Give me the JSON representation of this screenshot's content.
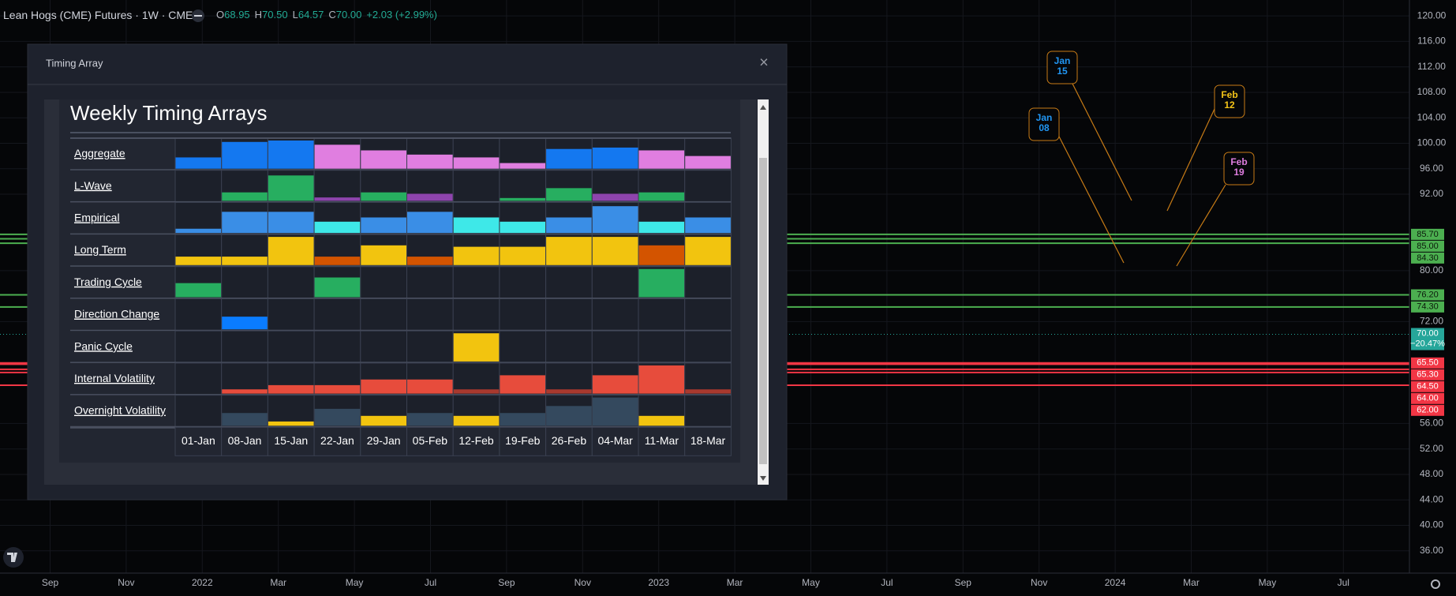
{
  "header": {
    "symbol": "Lean Hogs (CME) Futures · 1W · CME",
    "ohlc": [
      {
        "key": "O",
        "value": "68.95"
      },
      {
        "key": "H",
        "value": "70.50"
      },
      {
        "key": "L",
        "value": "64.57"
      },
      {
        "key": "C",
        "value": "70.00"
      }
    ],
    "change": "+2.03 (+2.99%)"
  },
  "price_axis": {
    "ylim": [
      32.5,
      122.5
    ],
    "ticks": [
      {
        "value": 120,
        "label": "120.00"
      },
      {
        "value": 116,
        "label": "116.00"
      },
      {
        "value": 112,
        "label": "112.00"
      },
      {
        "value": 108,
        "label": "108.00"
      },
      {
        "value": 104,
        "label": "104.00"
      },
      {
        "value": 100,
        "label": "100.00"
      },
      {
        "value": 96,
        "label": "96.00"
      },
      {
        "value": 92,
        "label": "92.00"
      },
      {
        "value": 80,
        "label": "80.00"
      },
      {
        "value": 72,
        "label": "72.00"
      },
      {
        "value": 56,
        "label": "56.00"
      },
      {
        "value": 52,
        "label": "52.00"
      },
      {
        "value": 48,
        "label": "48.00"
      },
      {
        "value": 44,
        "label": "44.00"
      },
      {
        "value": 40,
        "label": "40.00"
      },
      {
        "value": 36,
        "label": "36.00"
      }
    ]
  },
  "price_lines": [
    {
      "value": 85.7,
      "label": "85.70",
      "color": "#4caf50"
    },
    {
      "value": 85,
      "label": "85.00",
      "color": "#4caf50"
    },
    {
      "value": 84.3,
      "label": "84.30",
      "color": "#4caf50"
    },
    {
      "value": 76.2,
      "label": "76.20",
      "color": "#4caf50"
    },
    {
      "value": 74.3,
      "label": "74.30",
      "color": "#4caf50"
    },
    {
      "value": 65.5,
      "label": "65.50",
      "color": "#f23645"
    },
    {
      "value": 65.3,
      "label": "65.30",
      "color": "#f23645"
    },
    {
      "value": 64.5,
      "label": "64.50",
      "color": "#f23645"
    },
    {
      "value": 64,
      "label": "64.00",
      "color": "#f23645"
    },
    {
      "value": 62,
      "label": "62.00",
      "color": "#f23645"
    }
  ],
  "last_price": {
    "value": 70,
    "label": "70.00",
    "change": "−20.47%",
    "color": "#26a69a"
  },
  "time_axis": [
    "Sep",
    "Nov",
    "2022",
    "Mar",
    "May",
    "Jul",
    "Sep",
    "Nov",
    "2023",
    "Mar",
    "May",
    "Jul",
    "Sep",
    "Nov",
    "2024",
    "Mar",
    "May",
    "Jul"
  ],
  "annotations": [
    {
      "month": "Jan",
      "day": "15",
      "color": "#2196f3"
    },
    {
      "month": "Feb",
      "day": "12",
      "color": "#f5c518"
    },
    {
      "month": "Jan",
      "day": "08",
      "color": "#2196f3"
    },
    {
      "month": "Feb",
      "day": "19",
      "color": "#e07ee0"
    }
  ],
  "timing_array": {
    "window_title": "Timing Array",
    "close": "×",
    "title": "Weekly Timing Arrays",
    "ylim": [
      0,
      1
    ],
    "columns": [
      "01-Jan",
      "08-Jan",
      "15-Jan",
      "22-Jan",
      "29-Jan",
      "05-Feb",
      "12-Feb",
      "19-Feb",
      "26-Feb",
      "04-Mar",
      "11-Mar",
      "18-Mar"
    ],
    "rows": [
      {
        "name": "Aggregate",
        "values": [
          0.4,
          0.95,
          1,
          0.85,
          0.65,
          0.5,
          0.4,
          0.2,
          0.7,
          0.75,
          0.65,
          0.45
        ],
        "colors": [
          "#1478f0",
          "#1478f0",
          "#1478f0",
          "#e07ee0",
          "#e07ee0",
          "#e07ee0",
          "#e07ee0",
          "#e07ee0",
          "#1478f0",
          "#1478f0",
          "#e07ee0",
          "#e07ee0"
        ]
      },
      {
        "name": "L-Wave",
        "values": [
          0,
          0.3,
          0.9,
          0.12,
          0.3,
          0.25,
          0,
          0.1,
          0.45,
          0.25,
          0.3,
          0
        ],
        "colors": [
          "#27ae60",
          "#27ae60",
          "#27ae60",
          "#8e44ad",
          "#27ae60",
          "#8e44ad",
          "#27ae60",
          "#27ae60",
          "#27ae60",
          "#8e44ad",
          "#27ae60",
          "#27ae60"
        ]
      },
      {
        "name": "Empirical",
        "values": [
          0.15,
          0.75,
          0.75,
          0.4,
          0.55,
          0.75,
          0.55,
          0.4,
          0.55,
          0.95,
          0.4,
          0.55
        ],
        "colors": [
          "#3a8ee6",
          "#3a8ee6",
          "#3a8ee6",
          "#3ee8e8",
          "#3a8ee6",
          "#3a8ee6",
          "#3ee8e8",
          "#3ee8e8",
          "#3a8ee6",
          "#3a8ee6",
          "#3ee8e8",
          "#3a8ee6"
        ]
      },
      {
        "name": "Long Term",
        "values": [
          0.3,
          0.3,
          1,
          0.3,
          0.7,
          0.3,
          0.65,
          0.65,
          1,
          1,
          0.7,
          1
        ],
        "colors": [
          "#f2c40f",
          "#f2c40f",
          "#f2c40f",
          "#d35400",
          "#f2c40f",
          "#d35400",
          "#f2c40f",
          "#f2c40f",
          "#f2c40f",
          "#f2c40f",
          "#d35400",
          "#f2c40f"
        ]
      },
      {
        "name": "Trading Cycle",
        "values": [
          0.5,
          0,
          0,
          0.7,
          0,
          0,
          0,
          0,
          0,
          0,
          1,
          0
        ],
        "colors": [
          "#27ae60",
          "#27ae60",
          "#27ae60",
          "#27ae60",
          "#27ae60",
          "#27ae60",
          "#27ae60",
          "#27ae60",
          "#27ae60",
          "#27ae60",
          "#27ae60",
          "#27ae60"
        ]
      },
      {
        "name": "Direction Change",
        "values": [
          0,
          0.45,
          0,
          0,
          0,
          0,
          0,
          0,
          0,
          0,
          0,
          0
        ],
        "colors": [
          "#0a7cff",
          "#0a7cff",
          "#0a7cff",
          "#0a7cff",
          "#0a7cff",
          "#0a7cff",
          "#0a7cff",
          "#0a7cff",
          "#0a7cff",
          "#0a7cff",
          "#0a7cff",
          "#0a7cff"
        ]
      },
      {
        "name": "Panic Cycle",
        "values": [
          0,
          0,
          0,
          0,
          0,
          0,
          1,
          0,
          0,
          0,
          0,
          0
        ],
        "colors": [
          "#f2c40f",
          "#f2c40f",
          "#f2c40f",
          "#f2c40f",
          "#f2c40f",
          "#f2c40f",
          "#f2c40f",
          "#f2c40f",
          "#f2c40f",
          "#f2c40f",
          "#f2c40f",
          "#f2c40f"
        ]
      },
      {
        "name": "Internal Volatility",
        "values": [
          0,
          0.15,
          0.3,
          0.3,
          0.5,
          0.5,
          0.15,
          0.65,
          0.15,
          0.65,
          1,
          0.15
        ],
        "colors": [
          "#e74c3c",
          "#e74c3c",
          "#e74c3c",
          "#e74c3c",
          "#e74c3c",
          "#e74c3c",
          "#a8392e",
          "#e74c3c",
          "#a8392e",
          "#e74c3c",
          "#e74c3c",
          "#a8392e"
        ]
      },
      {
        "name": "Overnight Volatility",
        "values": [
          0,
          0.45,
          0.15,
          0.6,
          0.35,
          0.45,
          0.35,
          0.45,
          0.7,
          1,
          0.35,
          0
        ],
        "colors": [
          "#34495e",
          "#34495e",
          "#f2c40f",
          "#34495e",
          "#f2c40f",
          "#34495e",
          "#f2c40f",
          "#34495e",
          "#34495e",
          "#34495e",
          "#f2c40f",
          "#34495e"
        ]
      }
    ]
  }
}
